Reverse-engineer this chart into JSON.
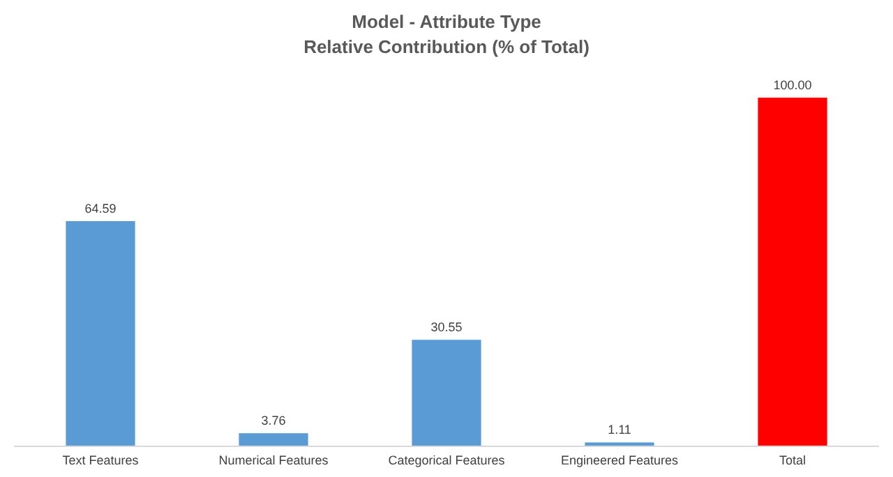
{
  "chart_data": {
    "type": "bar",
    "title": "Model - Attribute  Type",
    "subtitle": "Relative Contribution (% of Total)",
    "categories": [
      "Text Features",
      "Numerical Features",
      "Categorical Features",
      "Engineered Features",
      "Total"
    ],
    "values": [
      64.59,
      3.76,
      30.55,
      1.11,
      100.0
    ],
    "colors": [
      "#5b9bd5",
      "#5b9bd5",
      "#5b9bd5",
      "#5b9bd5",
      "#ff0000"
    ],
    "value_labels": [
      "64.59",
      "3.76",
      "30.55",
      "1.11",
      "100.00"
    ],
    "grid": false
  }
}
